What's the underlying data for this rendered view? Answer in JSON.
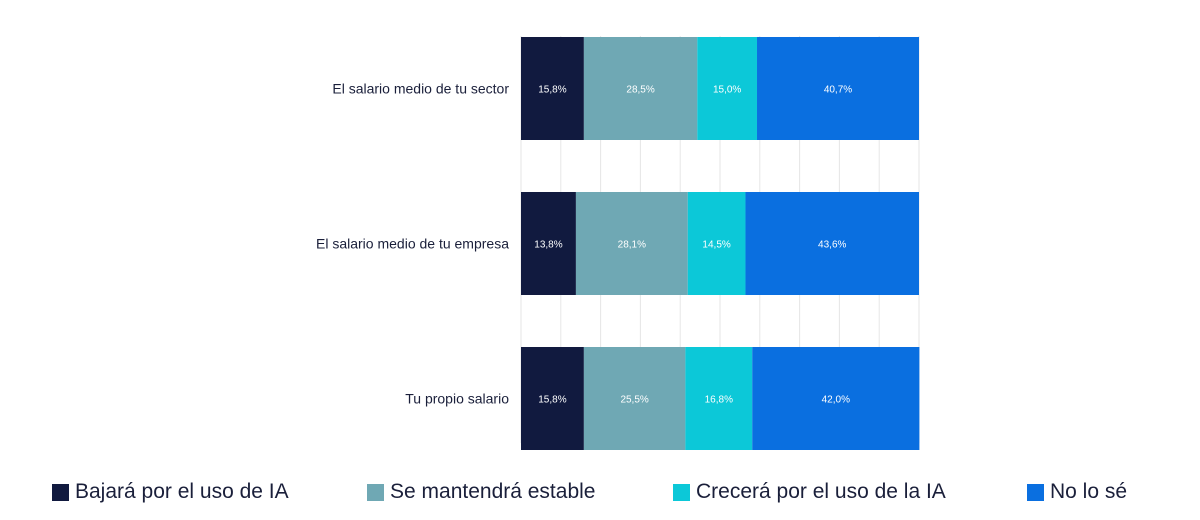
{
  "chart_data": {
    "type": "bar",
    "orientation": "horizontal",
    "stacked": true,
    "xlim": [
      0,
      100
    ],
    "grid": true,
    "legend_position": "bottom",
    "categories": [
      "El salario medio de tu sector",
      "El salario medio de tu empresa",
      "Tu propio salario"
    ],
    "series": [
      {
        "name": "Bajará por el uso de IA",
        "color": "#111a3f",
        "values": [
          15.8,
          13.8,
          15.8
        ],
        "labels": [
          "15,8%",
          "13,8%",
          "15,8%"
        ]
      },
      {
        "name": "Se mantendrá estable",
        "color": "#6fa8b4",
        "values": [
          28.5,
          28.1,
          25.5
        ],
        "labels": [
          "28,5%",
          "28,1%",
          "25,5%"
        ]
      },
      {
        "name": "Crecerá por el uso de la IA",
        "color": "#0cc8d8",
        "values": [
          15.0,
          14.5,
          16.8
        ],
        "labels": [
          "15,0%",
          "14,5%",
          "16,8%"
        ]
      },
      {
        "name": "No lo sé",
        "color": "#0a6fe0",
        "values": [
          40.7,
          43.6,
          42.0
        ],
        "labels": [
          "40,7%",
          "43,6%",
          "42,0%"
        ]
      }
    ]
  }
}
